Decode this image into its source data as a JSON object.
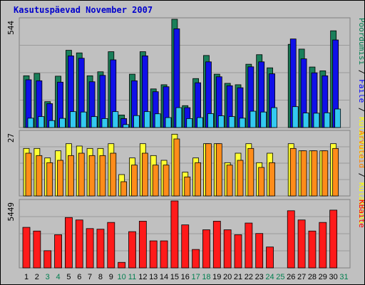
{
  "title": "Kasutuspäevad November 2007",
  "chart_data": {
    "type": "bar",
    "categories": [
      "1",
      "2",
      "3",
      "4",
      "5",
      "6",
      "7",
      "8",
      "9",
      "10",
      "11",
      "12",
      "13",
      "14",
      "15",
      "16",
      "17",
      "18",
      "19",
      "20",
      "21",
      "22",
      "23",
      "24",
      "25",
      "26",
      "27",
      "28",
      "29",
      "30",
      "31"
    ],
    "weekend_days": [
      "3",
      "4",
      "10",
      "11",
      "17",
      "18",
      "24",
      "25",
      "31"
    ],
    "panels": [
      {
        "id": "traffic",
        "ymax_label": "544",
        "ymax": 544,
        "right_labels": [
          {
            "text": "Pöördumisi",
            "color": "#007f4f"
          },
          {
            "text": " / ",
            "color": "#000000"
          },
          {
            "text": "Faile",
            "color": "#0000ff"
          },
          {
            "text": " / ",
            "color": "#000000"
          },
          {
            "text": "Külastusi",
            "color": "#ffff00"
          }
        ],
        "series": [
          {
            "name": "Pöördumisi",
            "color": "#1a7f5a",
            "values": [
              260,
              272,
              130,
              258,
              388,
              375,
              260,
              280,
              381,
              63,
              268,
              381,
              194,
              215,
              544,
              110,
              246,
              362,
              268,
              222,
              215,
              318,
              366,
              300,
              0,
              418,
              394,
              304,
              285,
              486,
              0
            ]
          },
          {
            "name": "Faile",
            "color": "#1010e8",
            "values": [
              240,
              235,
              120,
              228,
              360,
              348,
              230,
              262,
              340,
              45,
              235,
              360,
              180,
              205,
              496,
              100,
              225,
              330,
              255,
              210,
              200,
              305,
              330,
              270,
              0,
              445,
              345,
              275,
              260,
              440,
              0
            ]
          },
          {
            "name": "Külastusi",
            "color": "#33c9f0",
            "values": [
              47,
              55,
              35,
              46,
              80,
              78,
              55,
              45,
              80,
              15,
              60,
              80,
              69,
              50,
              100,
              45,
              50,
              70,
              59,
              55,
              47,
              82,
              78,
              100,
              0,
              105,
              73,
              72,
              74,
              93,
              0
            ]
          }
        ]
      },
      {
        "id": "visits",
        "ymax_label": "27",
        "ymax": 27,
        "right_labels": [
          {
            "text": "Arvuteid",
            "color": "#ff8000"
          },
          {
            "text": " / ",
            "color": "#000000"
          },
          {
            "text": "Külastusi",
            "color": "#ffff00"
          }
        ],
        "series": [
          {
            "name": "Külastusi",
            "color": "#ffff33",
            "values": [
              20,
              20,
              16,
              19,
              22,
              21,
              20,
              20,
              22,
              9,
              16,
              22,
              17,
              15,
              26,
              10,
              16,
              22,
              22,
              14,
              18,
              22,
              14,
              18,
              0,
              22,
              19,
              19,
              19,
              22,
              0
            ]
          },
          {
            "name": "Arvuteid",
            "color": "#ff8c1a",
            "values": [
              18,
              17,
              14,
              15,
              17,
              18,
              17,
              17,
              18,
              6,
              13,
              18,
              13,
              13,
              24,
              8,
              14,
              22,
              22,
              13,
              15,
              20,
              12,
              14,
              0,
              20,
              19,
              19,
              19,
              20,
              0
            ]
          }
        ]
      },
      {
        "id": "kbytes",
        "ymax_label": "5449",
        "ymax": 5449,
        "right_labels": [
          {
            "text": "KBaite",
            "color": "#ff0000"
          }
        ],
        "series": [
          {
            "name": "KBaite",
            "color": "#ff1a1a",
            "values": [
              3300,
              3000,
              1400,
              2700,
              4100,
              3900,
              3200,
              3150,
              3700,
              450,
              2950,
              3800,
              2200,
              2200,
              5449,
              3500,
              1500,
              3100,
              3800,
              3100,
              2700,
              3650,
              2800,
              1700,
              0,
              4650,
              3900,
              3000,
              3700,
              4700,
              0
            ]
          }
        ]
      }
    ]
  }
}
